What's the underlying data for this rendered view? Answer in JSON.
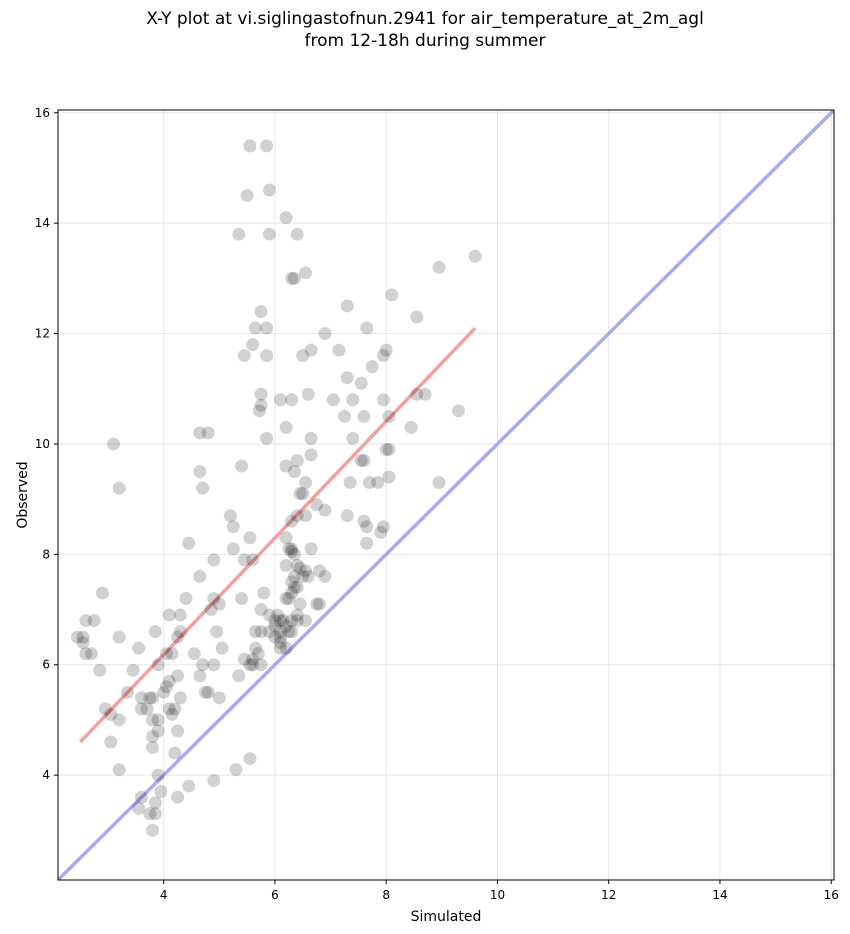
{
  "chart_data": {
    "type": "scatter",
    "title_line1": "X-Y plot at vi.siglingastofnun.2941 for air_temperature_at_2m_agl",
    "title_line2": "from 12-18h during summer",
    "xlabel": "Simulated",
    "ylabel": "Observed",
    "xlim": [
      2.1,
      16.05
    ],
    "ylim": [
      2.1,
      16.05
    ],
    "xticks": [
      4,
      6,
      8,
      10,
      12,
      14,
      16
    ],
    "yticks": [
      4,
      6,
      8,
      10,
      12,
      14,
      16
    ],
    "grid": true,
    "colors": {
      "points": "#000000",
      "fit_line": "#f4a0a0",
      "identity_line": "#a8aaf2"
    },
    "fit_line": {
      "x": [
        2.5,
        9.6
      ],
      "y": [
        4.6,
        12.1
      ]
    },
    "identity_line": {
      "x": [
        2.1,
        16.05
      ],
      "y": [
        2.1,
        16.05
      ]
    },
    "points": [
      [
        5.55,
        15.4
      ],
      [
        5.85,
        15.4
      ],
      [
        5.5,
        14.5
      ],
      [
        5.9,
        14.6
      ],
      [
        6.2,
        14.1
      ],
      [
        5.35,
        13.8
      ],
      [
        5.9,
        13.8
      ],
      [
        6.4,
        13.8
      ],
      [
        6.3,
        13.0
      ],
      [
        6.35,
        13.0
      ],
      [
        6.55,
        13.1
      ],
      [
        9.6,
        13.4
      ],
      [
        8.95,
        13.2
      ],
      [
        7.3,
        12.5
      ],
      [
        8.1,
        12.7
      ],
      [
        5.75,
        12.4
      ],
      [
        5.65,
        12.1
      ],
      [
        5.85,
        12.1
      ],
      [
        6.9,
        12.0
      ],
      [
        7.65,
        12.1
      ],
      [
        8.55,
        12.3
      ],
      [
        5.6,
        11.8
      ],
      [
        5.45,
        11.6
      ],
      [
        5.85,
        11.6
      ],
      [
        6.5,
        11.6
      ],
      [
        6.65,
        11.7
      ],
      [
        7.15,
        11.7
      ],
      [
        8.0,
        11.7
      ],
      [
        7.95,
        11.6
      ],
      [
        7.3,
        11.2
      ],
      [
        7.55,
        11.1
      ],
      [
        7.75,
        11.4
      ],
      [
        5.75,
        10.9
      ],
      [
        5.75,
        10.7
      ],
      [
        5.72,
        10.6
      ],
      [
        6.1,
        10.8
      ],
      [
        6.3,
        10.8
      ],
      [
        6.6,
        10.9
      ],
      [
        7.05,
        10.8
      ],
      [
        7.4,
        10.8
      ],
      [
        7.95,
        10.8
      ],
      [
        8.05,
        10.5
      ],
      [
        7.25,
        10.5
      ],
      [
        7.6,
        10.5
      ],
      [
        8.55,
        10.9
      ],
      [
        8.7,
        10.9
      ],
      [
        9.3,
        10.6
      ],
      [
        4.65,
        10.2
      ],
      [
        4.8,
        10.2
      ],
      [
        5.85,
        10.1
      ],
      [
        6.2,
        10.3
      ],
      [
        6.65,
        10.1
      ],
      [
        7.4,
        10.1
      ],
      [
        8.45,
        10.3
      ],
      [
        3.1,
        10.0
      ],
      [
        6.65,
        9.8
      ],
      [
        6.4,
        9.7
      ],
      [
        6.2,
        9.6
      ],
      [
        6.35,
        9.5
      ],
      [
        4.65,
        9.5
      ],
      [
        5.4,
        9.6
      ],
      [
        7.55,
        9.7
      ],
      [
        7.6,
        9.7
      ],
      [
        8.05,
        9.9
      ],
      [
        8.0,
        9.9
      ],
      [
        4.7,
        9.2
      ],
      [
        3.2,
        9.2
      ],
      [
        6.55,
        9.3
      ],
      [
        6.45,
        9.1
      ],
      [
        6.5,
        9.1
      ],
      [
        7.35,
        9.3
      ],
      [
        7.7,
        9.3
      ],
      [
        7.85,
        9.3
      ],
      [
        8.05,
        9.4
      ],
      [
        8.95,
        9.3
      ],
      [
        5.2,
        8.7
      ],
      [
        5.25,
        8.5
      ],
      [
        6.3,
        8.6
      ],
      [
        6.4,
        8.7
      ],
      [
        6.55,
        8.7
      ],
      [
        6.75,
        8.9
      ],
      [
        6.9,
        8.8
      ],
      [
        7.3,
        8.7
      ],
      [
        7.6,
        8.6
      ],
      [
        7.65,
        8.5
      ],
      [
        7.95,
        8.5
      ],
      [
        7.9,
        8.4
      ],
      [
        7.65,
        8.2
      ],
      [
        4.45,
        8.2
      ],
      [
        5.25,
        8.1
      ],
      [
        5.55,
        8.3
      ],
      [
        6.2,
        8.3
      ],
      [
        6.25,
        8.1
      ],
      [
        6.3,
        8.1
      ],
      [
        6.35,
        8.0
      ],
      [
        6.65,
        8.1
      ],
      [
        4.9,
        7.9
      ],
      [
        5.45,
        7.9
      ],
      [
        5.6,
        7.9
      ],
      [
        6.2,
        7.8
      ],
      [
        6.4,
        7.8
      ],
      [
        6.5,
        7.6
      ],
      [
        6.55,
        7.7
      ],
      [
        6.6,
        7.6
      ],
      [
        6.8,
        7.7
      ],
      [
        6.9,
        7.6
      ],
      [
        4.65,
        7.6
      ],
      [
        2.9,
        7.3
      ],
      [
        4.4,
        7.2
      ],
      [
        4.9,
        7.2
      ],
      [
        5.0,
        7.1
      ],
      [
        4.85,
        7.0
      ],
      [
        5.4,
        7.2
      ],
      [
        5.8,
        7.3
      ],
      [
        6.2,
        7.2
      ],
      [
        6.25,
        7.2
      ],
      [
        6.3,
        7.3
      ],
      [
        6.35,
        7.4
      ],
      [
        6.4,
        7.4
      ],
      [
        6.45,
        7.1
      ],
      [
        6.75,
        7.1
      ],
      [
        6.8,
        7.1
      ],
      [
        5.75,
        7.0
      ],
      [
        5.9,
        6.9
      ],
      [
        6.05,
        6.9
      ],
      [
        6.1,
        6.8
      ],
      [
        6.0,
        6.8
      ],
      [
        6.15,
        6.8
      ],
      [
        6.2,
        6.7
      ],
      [
        6.3,
        6.8
      ],
      [
        6.4,
        6.8
      ],
      [
        6.55,
        6.8
      ],
      [
        6.25,
        6.6
      ],
      [
        6.1,
        6.6
      ],
      [
        6.0,
        6.5
      ],
      [
        5.9,
        6.6
      ],
      [
        5.75,
        6.6
      ],
      [
        5.65,
        6.6
      ],
      [
        6.1,
        6.5
      ],
      [
        6.1,
        6.4
      ],
      [
        6.1,
        6.3
      ],
      [
        6.2,
        6.3
      ],
      [
        6.3,
        6.6
      ],
      [
        6.4,
        6.9
      ],
      [
        6.3,
        7.5
      ],
      [
        6.35,
        7.6
      ],
      [
        6.45,
        7.75
      ],
      [
        4.1,
        6.9
      ],
      [
        4.3,
        6.9
      ],
      [
        2.6,
        6.8
      ],
      [
        2.75,
        6.8
      ],
      [
        3.85,
        6.6
      ],
      [
        4.3,
        6.6
      ],
      [
        4.25,
        6.5
      ],
      [
        4.95,
        6.6
      ],
      [
        3.2,
        6.5
      ],
      [
        2.45,
        6.5
      ],
      [
        2.55,
        6.5
      ],
      [
        2.55,
        6.4
      ],
      [
        2.6,
        6.2
      ],
      [
        2.7,
        6.2
      ],
      [
        3.55,
        6.3
      ],
      [
        4.05,
        6.2
      ],
      [
        4.15,
        6.2
      ],
      [
        4.55,
        6.2
      ],
      [
        5.05,
        6.3
      ],
      [
        5.45,
        6.1
      ],
      [
        5.6,
        6.1
      ],
      [
        5.65,
        6.3
      ],
      [
        5.7,
        6.2
      ],
      [
        5.6,
        6.0
      ],
      [
        5.55,
        6.0
      ],
      [
        5.75,
        6.0
      ],
      [
        4.7,
        6.0
      ],
      [
        4.9,
        6.0
      ],
      [
        3.9,
        6.0
      ],
      [
        2.85,
        5.9
      ],
      [
        3.45,
        5.9
      ],
      [
        4.25,
        5.8
      ],
      [
        4.65,
        5.8
      ],
      [
        5.35,
        5.8
      ],
      [
        3.35,
        5.5
      ],
      [
        4.0,
        5.5
      ],
      [
        4.05,
        5.6
      ],
      [
        4.1,
        5.7
      ],
      [
        4.75,
        5.5
      ],
      [
        4.8,
        5.5
      ],
      [
        5.0,
        5.4
      ],
      [
        3.6,
        5.4
      ],
      [
        3.75,
        5.4
      ],
      [
        3.8,
        5.4
      ],
      [
        4.3,
        5.4
      ],
      [
        3.6,
        5.2
      ],
      [
        3.7,
        5.2
      ],
      [
        4.1,
        5.2
      ],
      [
        4.15,
        5.1
      ],
      [
        4.2,
        5.2
      ],
      [
        2.95,
        5.2
      ],
      [
        3.05,
        5.1
      ],
      [
        3.2,
        5.0
      ],
      [
        3.8,
        5.0
      ],
      [
        3.9,
        5.0
      ],
      [
        3.9,
        4.8
      ],
      [
        4.25,
        4.8
      ],
      [
        3.05,
        4.6
      ],
      [
        3.8,
        4.7
      ],
      [
        3.8,
        4.5
      ],
      [
        4.2,
        4.4
      ],
      [
        5.55,
        4.3
      ],
      [
        5.3,
        4.1
      ],
      [
        3.2,
        4.1
      ],
      [
        3.9,
        4.0
      ],
      [
        4.9,
        3.9
      ],
      [
        4.45,
        3.8
      ],
      [
        3.95,
        3.7
      ],
      [
        3.6,
        3.6
      ],
      [
        4.25,
        3.6
      ],
      [
        3.85,
        3.5
      ],
      [
        3.55,
        3.4
      ],
      [
        3.75,
        3.3
      ],
      [
        3.85,
        3.3
      ],
      [
        3.8,
        3.0
      ],
      [
        6.3,
        8.05
      ],
      [
        6.0,
        6.7
      ]
    ]
  }
}
